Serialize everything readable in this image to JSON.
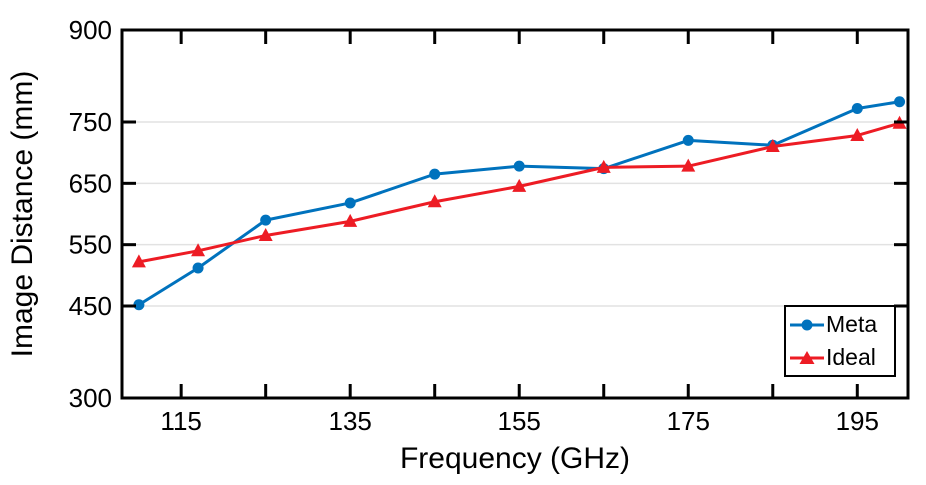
{
  "figure": {
    "background": "#ffffff"
  },
  "style": {
    "axis_color": "#000000",
    "grid_color": "#e2e2e2",
    "tick_length": 14,
    "tick_width": 3,
    "border_width": 3,
    "line_width": 3
  },
  "chart_data": {
    "type": "line",
    "title": "",
    "xlabel": "Frequency (GHz)",
    "ylabel": "Image Distance (mm)",
    "xlim": [
      108,
      201
    ],
    "ylim": [
      300,
      900
    ],
    "x_major_ticks": [
      115,
      125,
      135,
      145,
      155,
      165,
      175,
      185,
      195
    ],
    "x_label_values": [
      115,
      135,
      155,
      175,
      195
    ],
    "y_ticks": [
      300,
      450,
      550,
      650,
      750,
      900
    ],
    "grid": "horizontal",
    "x": [
      110,
      117,
      125,
      135,
      145,
      155,
      165,
      175,
      185,
      195,
      200
    ],
    "series": [
      {
        "name": "Meta",
        "color": "#0072bd",
        "marker": "circle",
        "values": [
          452,
          512,
          590,
          618,
          665,
          678,
          674,
          720,
          712,
          772,
          783
        ]
      },
      {
        "name": "Ideal",
        "color": "#ed1c24",
        "marker": "triangle",
        "values": [
          522,
          540,
          565,
          588,
          620,
          645,
          676,
          678,
          710,
          728,
          748
        ]
      }
    ],
    "legend": {
      "position": "bottom-right",
      "entries": [
        "Meta",
        "Ideal"
      ]
    }
  }
}
